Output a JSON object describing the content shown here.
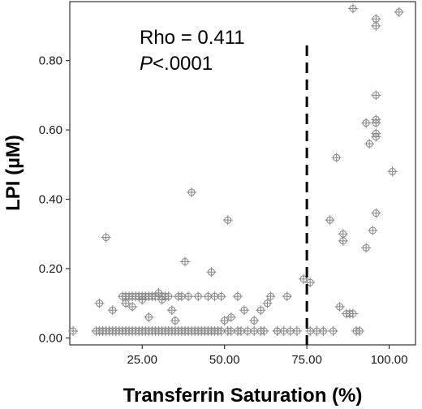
{
  "chart_data": {
    "type": "scatter",
    "title": "",
    "xlabel": "Transferrin Saturation (%)",
    "ylabel": "LPI  (µM)",
    "xlim": [
      3,
      108
    ],
    "ylim": [
      -0.02,
      0.97
    ],
    "x_ticks": [
      25,
      50,
      75,
      100
    ],
    "x_tick_labels": [
      "25.00",
      "50.00",
      "75.00",
      "100.00"
    ],
    "y_ticks": [
      0,
      0.2,
      0.4,
      0.6,
      0.8
    ],
    "y_tick_labels": [
      "0.00",
      "0.20",
      "0.40",
      "0.60",
      "0.80"
    ],
    "grid": false,
    "reference_line": {
      "x": 75,
      "style": "dashed"
    },
    "annotation": {
      "rho": "Rho = 0.411",
      "p_italic": "P",
      "p_rest": "<.0001"
    },
    "marker_color": "#8c8c8c",
    "points": [
      [
        4,
        0.02
      ],
      [
        11,
        0.02
      ],
      [
        12,
        0.02
      ],
      [
        12,
        0.1
      ],
      [
        13,
        0.02
      ],
      [
        14,
        0.02
      ],
      [
        14,
        0.29
      ],
      [
        15,
        0.02
      ],
      [
        16,
        0.02
      ],
      [
        16,
        0.08
      ],
      [
        17,
        0.02
      ],
      [
        18,
        0.02
      ],
      [
        19,
        0.02
      ],
      [
        19,
        0.12
      ],
      [
        20,
        0.02
      ],
      [
        20,
        0.12
      ],
      [
        20,
        0.1
      ],
      [
        21,
        0.02
      ],
      [
        21,
        0.12
      ],
      [
        22,
        0.02
      ],
      [
        22,
        0.12
      ],
      [
        22,
        0.09
      ],
      [
        23,
        0.02
      ],
      [
        23,
        0.12
      ],
      [
        24,
        0.02
      ],
      [
        24,
        0.12
      ],
      [
        25,
        0.02
      ],
      [
        25,
        0.11
      ],
      [
        25,
        0.12
      ],
      [
        26,
        0.02
      ],
      [
        26,
        0.12
      ],
      [
        27,
        0.02
      ],
      [
        27,
        0.12
      ],
      [
        27,
        0.06
      ],
      [
        28,
        0.02
      ],
      [
        28,
        0.12
      ],
      [
        29,
        0.02
      ],
      [
        29,
        0.12
      ],
      [
        30,
        0.02
      ],
      [
        30,
        0.13
      ],
      [
        31,
        0.02
      ],
      [
        31,
        0.12
      ],
      [
        31,
        0.11
      ],
      [
        32,
        0.02
      ],
      [
        32,
        0.12
      ],
      [
        33,
        0.02
      ],
      [
        33,
        0.12
      ],
      [
        34,
        0.02
      ],
      [
        34,
        0.08
      ],
      [
        35,
        0.02
      ],
      [
        35,
        0.05
      ],
      [
        36,
        0.02
      ],
      [
        36,
        0.12
      ],
      [
        37,
        0.02
      ],
      [
        37,
        0.12
      ],
      [
        38,
        0.02
      ],
      [
        38,
        0.22
      ],
      [
        39,
        0.02
      ],
      [
        39,
        0.12
      ],
      [
        40,
        0.02
      ],
      [
        40,
        0.42
      ],
      [
        41,
        0.02
      ],
      [
        42,
        0.02
      ],
      [
        42,
        0.12
      ],
      [
        43,
        0.02
      ],
      [
        44,
        0.02
      ],
      [
        45,
        0.02
      ],
      [
        45,
        0.12
      ],
      [
        46,
        0.02
      ],
      [
        46,
        0.19
      ],
      [
        47,
        0.02
      ],
      [
        47,
        0.12
      ],
      [
        48,
        0.02
      ],
      [
        49,
        0.02
      ],
      [
        49,
        0.12
      ],
      [
        50,
        0.05
      ],
      [
        51,
        0.02
      ],
      [
        51,
        0.34
      ],
      [
        52,
        0.02
      ],
      [
        52,
        0.06
      ],
      [
        54,
        0.02
      ],
      [
        54,
        0.12
      ],
      [
        55,
        0.02
      ],
      [
        56,
        0.08
      ],
      [
        57,
        0.02
      ],
      [
        59,
        0.02
      ],
      [
        59,
        0.05
      ],
      [
        61,
        0.02
      ],
      [
        61,
        0.08
      ],
      [
        62,
        0.02
      ],
      [
        63,
        0.1
      ],
      [
        64,
        0.12
      ],
      [
        66,
        0.02
      ],
      [
        66,
        0.02
      ],
      [
        68,
        0.02
      ],
      [
        69,
        0.12
      ],
      [
        70,
        0.02
      ],
      [
        72,
        0.02
      ],
      [
        74,
        0.17
      ],
      [
        76,
        0.02
      ],
      [
        76,
        0.16
      ],
      [
        78,
        0.02
      ],
      [
        80,
        0.02
      ],
      [
        82,
        0.34
      ],
      [
        83,
        0.02
      ],
      [
        84,
        0.52
      ],
      [
        85,
        0.09
      ],
      [
        86,
        0.3
      ],
      [
        86,
        0.28
      ],
      [
        87,
        0.07
      ],
      [
        88,
        0.07
      ],
      [
        89,
        0.07
      ],
      [
        89,
        0.95
      ],
      [
        90,
        0.02
      ],
      [
        91,
        0.02
      ],
      [
        93,
        0.62
      ],
      [
        93,
        0.26
      ],
      [
        94,
        0.56
      ],
      [
        95,
        0.31
      ],
      [
        96,
        0.92
      ],
      [
        96,
        0.9
      ],
      [
        96,
        0.7
      ],
      [
        96,
        0.63
      ],
      [
        96,
        0.62
      ],
      [
        96,
        0.59
      ],
      [
        96,
        0.58
      ],
      [
        96,
        0.36
      ],
      [
        101,
        0.48
      ],
      [
        103,
        0.94
      ]
    ]
  }
}
